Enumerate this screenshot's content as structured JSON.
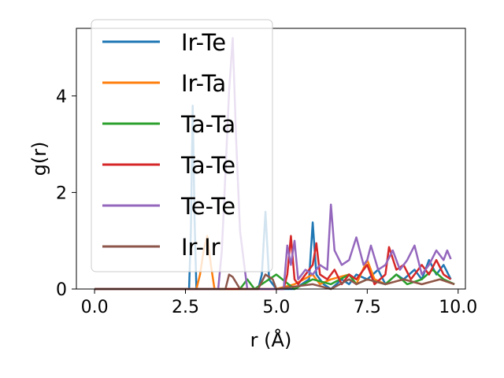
{
  "chart_data": {
    "type": "line",
    "xlabel": "r (Å)",
    "ylabel": "g(r)",
    "xlim": [
      -0.5,
      10.2
    ],
    "ylim": [
      0,
      5.4
    ],
    "xticks": [
      0.0,
      2.5,
      5.0,
      7.5,
      10.0
    ],
    "xtick_labels": [
      "0.0",
      "2.5",
      "5.0",
      "7.5",
      "10.0"
    ],
    "yticks": [
      0,
      2,
      4
    ],
    "ytick_labels": [
      "0",
      "2",
      "4"
    ],
    "grid": false,
    "legend_position": "upper-left",
    "series": [
      {
        "name": "Ir-Te",
        "color": "#1f77b4",
        "x": [
          0,
          2.5,
          2.6,
          2.65,
          2.7,
          2.75,
          2.8,
          2.9,
          3.0,
          4.5,
          4.6,
          4.7,
          4.8,
          5.0,
          5.5,
          5.7,
          5.9,
          6.0,
          6.1,
          6.3,
          6.5,
          6.8,
          7.0,
          7.2,
          7.5,
          7.8,
          8.0,
          8.3,
          8.5,
          8.8,
          9.0,
          9.2,
          9.4,
          9.6,
          9.8
        ],
        "y": [
          0,
          0,
          0,
          1.2,
          3.8,
          1.5,
          0,
          0,
          0,
          0,
          0.3,
          1.6,
          0.2,
          0,
          0,
          0.1,
          0.2,
          1.38,
          0.3,
          0.1,
          0.0,
          0.2,
          0.1,
          0.3,
          0.2,
          0.4,
          0.1,
          0.3,
          0.2,
          0.4,
          0.2,
          0.6,
          0.3,
          0.5,
          0.2
        ]
      },
      {
        "name": "Ir-Ta",
        "color": "#ff7f0e",
        "x": [
          0,
          2.8,
          2.9,
          3.0,
          3.1,
          3.2,
          3.3,
          4.5,
          5.0,
          5.5,
          6.0,
          6.2,
          6.5,
          7.0,
          7.2,
          7.5,
          7.7,
          8.0,
          8.5,
          9.0,
          9.5,
          9.9
        ],
        "y": [
          0,
          0,
          0.3,
          0.8,
          1.1,
          0.5,
          0,
          0,
          0,
          0.1,
          0.3,
          0.1,
          0.2,
          0.3,
          0.1,
          0.6,
          0.2,
          0.1,
          0.2,
          0.1,
          0.2,
          0.1
        ]
      },
      {
        "name": "Ta-Ta",
        "color": "#2ca02c",
        "x": [
          0,
          4.0,
          4.2,
          4.4,
          5.0,
          5.5,
          6.0,
          6.5,
          7.0,
          7.2,
          7.5,
          8.0,
          8.3,
          8.6,
          9.0,
          9.3,
          9.6,
          9.9
        ],
        "y": [
          0,
          0,
          0.2,
          0,
          0.3,
          0,
          0.2,
          0.1,
          0.3,
          0.1,
          0.2,
          0.1,
          0.3,
          0.1,
          0.2,
          0.4,
          0.2,
          0.1
        ]
      },
      {
        "name": "Ta-Te",
        "color": "#d62728",
        "x": [
          0,
          2.8,
          3.0,
          3.2,
          5.2,
          5.3,
          5.4,
          5.5,
          5.6,
          5.8,
          6.0,
          6.1,
          6.2,
          6.4,
          6.6,
          6.8,
          7.0,
          7.2,
          7.5,
          7.7,
          8.0,
          8.1,
          8.3,
          8.5,
          8.7,
          9.0,
          9.2,
          9.4,
          9.6,
          9.8
        ],
        "y": [
          0,
          0,
          0,
          0,
          0,
          0.3,
          1.1,
          0.2,
          0.1,
          0.3,
          0.5,
          0.95,
          0.3,
          0.2,
          0.4,
          0.1,
          0.3,
          0.2,
          0.5,
          0.1,
          0.3,
          0.87,
          0.4,
          0.5,
          0.2,
          0.5,
          0.3,
          0.6,
          0.3,
          0.2
        ]
      },
      {
        "name": "Te-Te",
        "color": "#9467bd",
        "x": [
          0,
          3.4,
          3.5,
          3.6,
          3.7,
          3.8,
          3.9,
          4.0,
          4.2,
          5.2,
          5.3,
          5.4,
          5.5,
          5.6,
          5.8,
          6.0,
          6.2,
          6.4,
          6.5,
          6.6,
          6.8,
          7.0,
          7.2,
          7.4,
          7.5,
          7.6,
          7.8,
          8.0,
          8.2,
          8.4,
          8.6,
          8.8,
          9.0,
          9.2,
          9.4,
          9.6,
          9.7,
          9.8
        ],
        "y": [
          0,
          0,
          0.8,
          2.4,
          4.1,
          5.2,
          3.0,
          1.2,
          0,
          0,
          0.9,
          0.5,
          1.0,
          0.2,
          0.4,
          0.3,
          0.5,
          0.4,
          1.75,
          0.8,
          0.5,
          0.6,
          1.07,
          0.5,
          0.6,
          0.9,
          0.4,
          0.5,
          0.8,
          0.4,
          0.6,
          0.9,
          0.3,
          0.5,
          0.8,
          0.6,
          0.8,
          0.62
        ]
      },
      {
        "name": "Ir-Ir",
        "color": "#8c564b",
        "x": [
          0,
          3.6,
          3.7,
          3.8,
          4.0,
          4.5,
          4.7,
          4.9,
          5.0,
          6.0,
          6.5,
          7.0,
          7.2,
          7.5,
          8.0,
          8.5,
          9.0,
          9.5,
          9.9
        ],
        "y": [
          0,
          0,
          0.3,
          0.25,
          0,
          0,
          0.3,
          0.2,
          0,
          0.1,
          0,
          0.2,
          0.1,
          0.2,
          0.1,
          0.2,
          0.1,
          0.2,
          0.1
        ]
      }
    ]
  }
}
